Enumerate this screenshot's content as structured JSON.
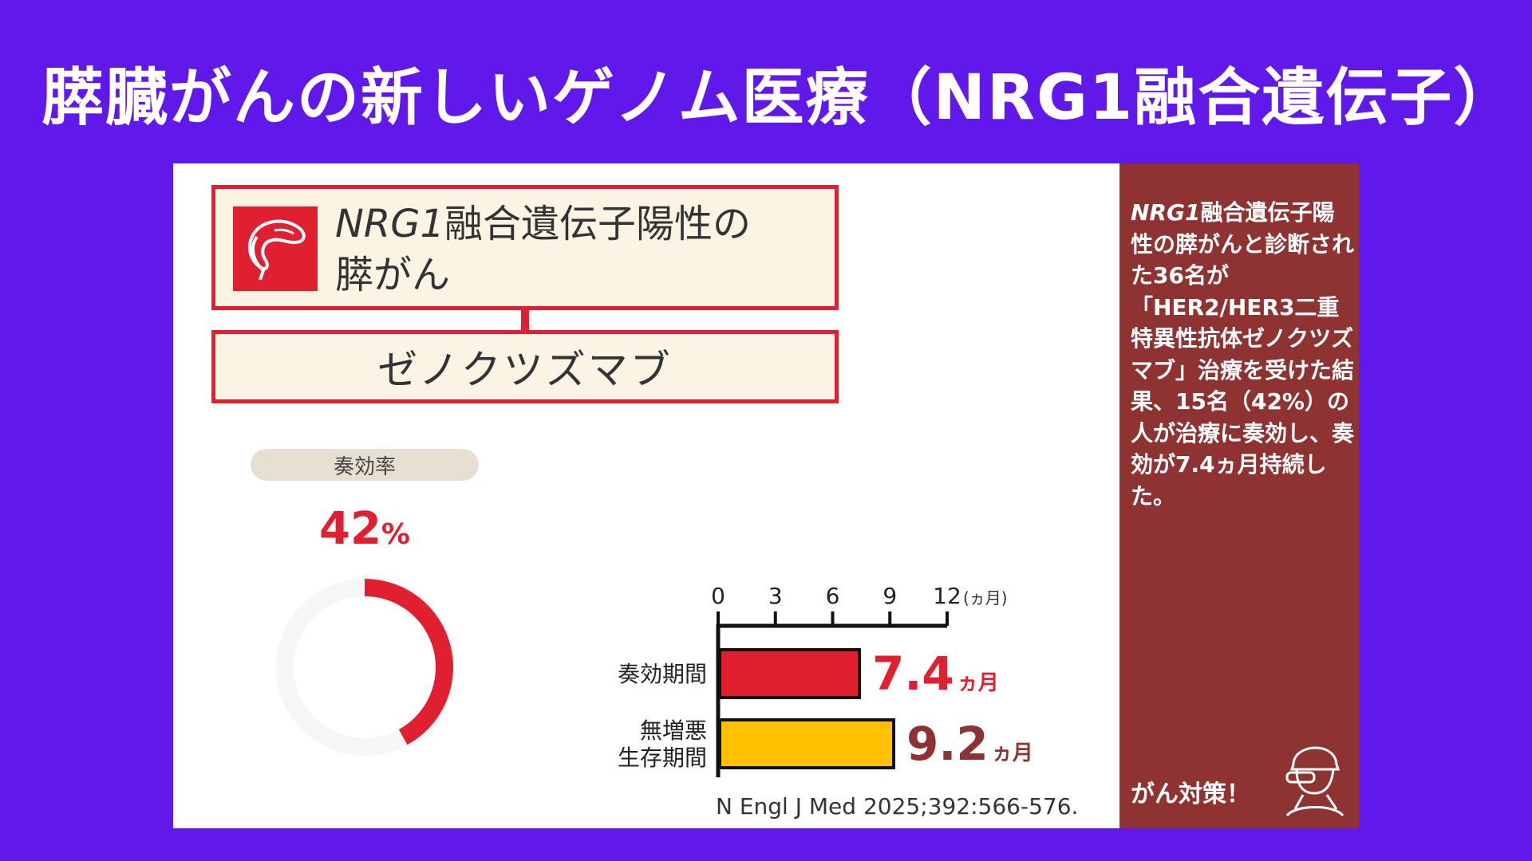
{
  "page": {
    "title": "膵臓がんの新しいゲノム医療（NRG1融合遺伝子）"
  },
  "header_box": {
    "line1_italic": "NRG1",
    "line1_rest": "融合遺伝子陽性の",
    "line2": "膵がん",
    "icon": "pancreas-icon"
  },
  "drug_box": {
    "label": "ゼノクツズマブ"
  },
  "response": {
    "label": "奏効率",
    "value_text": "42",
    "unit": "%",
    "fraction": 0.42
  },
  "citation": "N Engl J Med 2025;392:566-576.",
  "side_panel": {
    "text_italic": "NRG1",
    "text_rest": "融合遺伝子陽性の膵がんと診断された36名が「HER2/HER3二重特異性抗体ゼノクツズマブ」治療を受けた結果、15名（42%）の人が治療に奏効し、奏効が7.4ヵ月持続した。",
    "footer": "がん対策！",
    "icon": "doctor-icon"
  },
  "colors": {
    "background": "#6118ea",
    "accent_red": "#e02030",
    "bar_red": "#e02030",
    "bar_yellow": "#ffc000",
    "value_dark_red": "#8e3232",
    "side_panel": "#8e3232"
  },
  "chart_data": [
    {
      "type": "pie",
      "values": [
        42,
        58
      ],
      "categories": [
        "",
        ""
      ],
      "title": "奏効率"
    },
    {
      "type": "bar",
      "orientation": "horizontal",
      "categories": [
        "奏効期間",
        "無増悪\n生存期間"
      ],
      "values": [
        7.4,
        9.2
      ],
      "value_labels": [
        "7.4",
        "9.2"
      ],
      "value_unit": "ヵ月",
      "xlim": [
        0,
        12
      ],
      "xticks": [
        0,
        3,
        6,
        9,
        12
      ],
      "xlabel": "(ヵ月)",
      "ylabel": "",
      "grid": false
    }
  ]
}
